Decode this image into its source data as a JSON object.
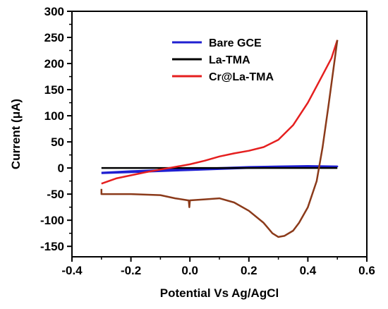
{
  "chart_data": {
    "type": "line",
    "xlabel": "Potential Vs Ag/AgCl",
    "ylabel": "Current (μA)",
    "xlim": [
      -0.4,
      0.6
    ],
    "ylim": [
      -170,
      300
    ],
    "xticks": [
      "-0.4",
      "-0.2",
      "0.0",
      "0.2",
      "0.4",
      "0.6"
    ],
    "yticks": [
      "-150",
      "-100",
      "-50",
      "0",
      "50",
      "100",
      "150",
      "200",
      "250",
      "300"
    ],
    "legend_position": "top-right",
    "grid": false,
    "series": [
      {
        "name": "Bare GCE",
        "color": "#1f1fd1",
        "x": [
          -0.3,
          -0.2,
          -0.1,
          0.0,
          0.1,
          0.2,
          0.3,
          0.4,
          0.5,
          0.5,
          0.4,
          0.3,
          0.2,
          0.1,
          0.0,
          -0.1,
          -0.2,
          -0.3
        ],
        "y": [
          -10,
          -8,
          -6,
          -4,
          -2,
          0,
          1,
          2,
          3,
          3,
          4,
          3,
          2,
          0,
          -2,
          -4,
          -6,
          -9
        ]
      },
      {
        "name": "La-TMA",
        "color": "#000000",
        "x": [
          -0.3,
          0.5
        ],
        "y": [
          0,
          0
        ]
      },
      {
        "name": "Cr@La-TMA",
        "color": "#e51f1f",
        "return_color": "#8b3a1a",
        "x": [
          -0.3,
          -0.25,
          -0.2,
          -0.15,
          -0.1,
          -0.05,
          0.0,
          0.05,
          0.1,
          0.15,
          0.2,
          0.25,
          0.3,
          0.35,
          0.4,
          0.45,
          0.48,
          0.5,
          0.5,
          0.47,
          0.45,
          0.43,
          0.4,
          0.37,
          0.35,
          0.32,
          0.3,
          0.28,
          0.25,
          0.2,
          0.15,
          0.1,
          0.05,
          0.0,
          -0.002,
          -0.004,
          -0.006,
          -0.05,
          -0.1,
          -0.2,
          -0.3,
          -0.3
        ],
        "y": [
          -30,
          -20,
          -14,
          -8,
          -3,
          2,
          7,
          14,
          22,
          28,
          33,
          40,
          54,
          82,
          125,
          178,
          210,
          245,
          245,
          120,
          40,
          -25,
          -75,
          -105,
          -120,
          -130,
          -132,
          -125,
          -105,
          -82,
          -66,
          -58,
          -60,
          -62,
          -75,
          -62,
          -62,
          -58,
          -52,
          -50,
          -50,
          -40
        ]
      }
    ]
  }
}
